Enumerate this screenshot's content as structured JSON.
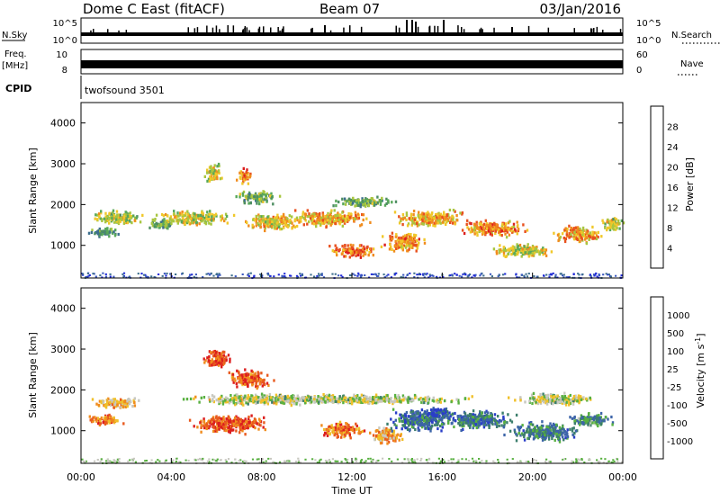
{
  "header": {
    "station": "Dome C East (fitACF)",
    "beam": "Beam 07",
    "date": "03/Jan/2016"
  },
  "status_panels": {
    "nsky_label": "N.Sky",
    "nsky_ticks": [
      "10^5",
      "10^0"
    ],
    "nsearch_label": "N.Search",
    "nsearch_ticks": [
      "10^5",
      "10^0"
    ],
    "freq_label_line1": "Freq.",
    "freq_label_line2": "[MHz]",
    "freq_ticks": [
      "10",
      "8"
    ],
    "nave_label": "Nave",
    "nave_ticks": [
      "60",
      "0"
    ],
    "cpid_label": "CPID",
    "cpid_value": "twofsound 3501"
  },
  "chart_data": [
    {
      "type": "heatmap",
      "name": "power",
      "xlabel": "",
      "ylabel": "Slant Range [km]",
      "xlim": [
        0,
        24
      ],
      "ylim": [
        200,
        4500
      ],
      "yticks": [
        "4000",
        "3000",
        "2000",
        "1000"
      ],
      "colorbar": {
        "label": "Power [dB]",
        "ticks": [
          "28",
          "24",
          "20",
          "16",
          "12",
          "8",
          "4"
        ],
        "colors": [
          "#1e28d8",
          "#3a58c0",
          "#3c6e8e",
          "#4e8e62",
          "#58a85a",
          "#a8c640",
          "#f0c82a",
          "#f08c1e",
          "#e8501e",
          "#dc1e1e"
        ]
      },
      "blobs": [
        {
          "t": 1.6,
          "r": 1700,
          "dt": 1.6,
          "dr": 260,
          "level": 0.55
        },
        {
          "t": 1.0,
          "r": 1350,
          "dt": 1.0,
          "dr": 180,
          "level": 0.35
        },
        {
          "t": 5.8,
          "r": 2800,
          "dt": 0.6,
          "dr": 350,
          "level": 0.6
        },
        {
          "t": 7.2,
          "r": 2750,
          "dt": 0.5,
          "dr": 300,
          "level": 0.75
        },
        {
          "t": 7.8,
          "r": 2200,
          "dt": 1.4,
          "dr": 250,
          "level": 0.45
        },
        {
          "t": 5.0,
          "r": 1700,
          "dt": 2.4,
          "dr": 260,
          "level": 0.6
        },
        {
          "t": 8.5,
          "r": 1600,
          "dt": 2.0,
          "dr": 300,
          "level": 0.65
        },
        {
          "t": 11.0,
          "r": 1700,
          "dt": 2.8,
          "dr": 300,
          "level": 0.7
        },
        {
          "t": 12.0,
          "r": 900,
          "dt": 1.6,
          "dr": 260,
          "level": 0.8
        },
        {
          "t": 14.3,
          "r": 1100,
          "dt": 1.4,
          "dr": 350,
          "level": 0.75
        },
        {
          "t": 15.5,
          "r": 1700,
          "dt": 2.4,
          "dr": 300,
          "level": 0.7
        },
        {
          "t": 18.2,
          "r": 1450,
          "dt": 2.2,
          "dr": 300,
          "level": 0.75
        },
        {
          "t": 19.5,
          "r": 900,
          "dt": 2.0,
          "dr": 250,
          "level": 0.6
        },
        {
          "t": 22.0,
          "r": 1300,
          "dt": 1.6,
          "dr": 300,
          "level": 0.7
        },
        {
          "t": 23.5,
          "r": 1550,
          "dt": 0.8,
          "dr": 250,
          "level": 0.55
        },
        {
          "t": 12.5,
          "r": 2100,
          "dt": 2.0,
          "dr": 200,
          "level": 0.45
        },
        {
          "t": 3.6,
          "r": 1550,
          "dt": 1.0,
          "dr": 200,
          "level": 0.45
        }
      ]
    },
    {
      "type": "heatmap",
      "name": "velocity",
      "xlabel": "Time UT",
      "ylabel": "Slant Range [km]",
      "xlim": [
        0,
        24
      ],
      "ylim": [
        200,
        4500
      ],
      "xticks": [
        "00:00",
        "04:00",
        "08:00",
        "12:00",
        "16:00",
        "20:00",
        "00:00"
      ],
      "yticks": [
        "4000",
        "3000",
        "2000",
        "1000"
      ],
      "colorbar": {
        "label": "Velocity [m s",
        "ticks": [
          "1000",
          "500",
          "100",
          "25",
          "-25",
          "-100",
          "-500",
          "-1000"
        ],
        "colors": [
          "#2a3ec8",
          "#3c64a8",
          "#3c7e6c",
          "#58b040",
          "#c8c8c0",
          "#f0c02a",
          "#f08c1e",
          "#e85a1e",
          "#dc1e1e"
        ]
      },
      "blobs": [
        {
          "t": 1.6,
          "r": 1700,
          "dt": 1.6,
          "dr": 220,
          "level": 0.62
        },
        {
          "t": 1.0,
          "r": 1300,
          "dt": 1.2,
          "dr": 200,
          "level": 0.75
        },
        {
          "t": 6.0,
          "r": 2800,
          "dt": 1.0,
          "dr": 350,
          "level": 0.85
        },
        {
          "t": 7.5,
          "r": 2300,
          "dt": 1.4,
          "dr": 350,
          "level": 0.82
        },
        {
          "t": 6.5,
          "r": 1200,
          "dt": 2.6,
          "dr": 350,
          "level": 0.85
        },
        {
          "t": 8.0,
          "r": 1800,
          "dt": 5.0,
          "dr": 200,
          "level": 0.5
        },
        {
          "t": 12.0,
          "r": 1800,
          "dt": 8.0,
          "dr": 180,
          "level": 0.48
        },
        {
          "t": 11.5,
          "r": 1050,
          "dt": 1.4,
          "dr": 300,
          "level": 0.78
        },
        {
          "t": 13.5,
          "r": 900,
          "dt": 1.2,
          "dr": 300,
          "level": 0.65
        },
        {
          "t": 15.0,
          "r": 1300,
          "dt": 2.0,
          "dr": 400,
          "level": 0.2
        },
        {
          "t": 17.5,
          "r": 1300,
          "dt": 2.4,
          "dr": 350,
          "level": 0.22
        },
        {
          "t": 20.5,
          "r": 1000,
          "dt": 2.4,
          "dr": 350,
          "level": 0.25
        },
        {
          "t": 22.5,
          "r": 1300,
          "dt": 1.6,
          "dr": 250,
          "level": 0.3
        },
        {
          "t": 21.0,
          "r": 1800,
          "dt": 3.0,
          "dr": 200,
          "level": 0.48
        },
        {
          "t": 15.8,
          "r": 1450,
          "dt": 1.0,
          "dr": 250,
          "level": 0.12
        }
      ]
    }
  ]
}
